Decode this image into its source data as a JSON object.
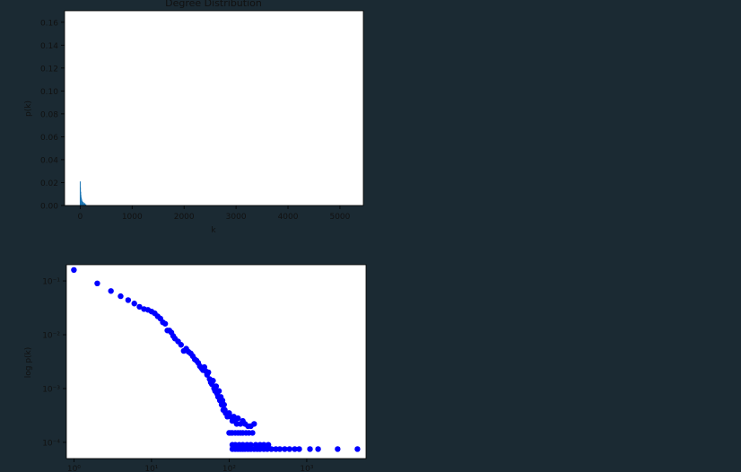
{
  "colors": {
    "page_background": "#1b2a33",
    "plot_background": "#ffffff",
    "histogram_color": "#1f77b4",
    "scatter_color": "#0000ff",
    "text_color": "#111111"
  },
  "chart_data": [
    {
      "type": "bar",
      "title": "Degree Distribution",
      "xlabel": "k",
      "ylabel": "p(k)",
      "xlim": [
        -300,
        5450
      ],
      "ylim": [
        0,
        0.17
      ],
      "x_ticks": [
        0,
        1000,
        2000,
        3000,
        4000,
        5000
      ],
      "x_tick_labels": [
        "0",
        "1000",
        "2000",
        "3000",
        "4000",
        "5000"
      ],
      "y_ticks": [
        0,
        0.02,
        0.04,
        0.06,
        0.08,
        0.1,
        0.12,
        0.14,
        0.16
      ],
      "y_tick_labels": [
        "0.00",
        "0.02",
        "0.04",
        "0.06",
        "0.08",
        "0.10",
        "0.12",
        "0.14",
        "0.16"
      ],
      "grid": false,
      "x": [
        1,
        5,
        10,
        15,
        20,
        25,
        30,
        40,
        50,
        60,
        70,
        80,
        90,
        100,
        110
      ],
      "values": [
        0.021,
        0.016,
        0.012,
        0.009,
        0.007,
        0.006,
        0.005,
        0.004,
        0.003,
        0.003,
        0.002,
        0.002,
        0.002,
        0.001,
        0.001
      ]
    },
    {
      "type": "scatter",
      "xlabel": "",
      "ylabel": "log p(k)",
      "x_scale": "log",
      "y_scale": "log",
      "xlim": [
        0.8,
        5800
      ],
      "ylim": [
        5e-05,
        0.2
      ],
      "x_ticks": [
        1,
        10,
        100,
        1000
      ],
      "x_tick_labels": [
        "10⁰",
        "10¹",
        "10²",
        "10³"
      ],
      "y_ticks": [
        0.0001,
        0.001,
        0.01,
        0.1
      ],
      "y_tick_labels": [
        "10⁻⁴",
        "10⁻³",
        "10⁻²",
        "10⁻¹"
      ],
      "grid": false,
      "x": [
        1,
        2,
        3,
        4,
        5,
        6,
        7,
        8,
        9,
        10,
        11,
        12,
        13,
        14,
        15,
        16,
        17,
        18,
        19,
        20,
        22,
        24,
        26,
        28,
        30,
        32,
        34,
        36,
        38,
        40,
        42,
        44,
        46,
        48,
        50,
        52,
        54,
        56,
        58,
        60,
        62,
        64,
        66,
        68,
        70,
        72,
        74,
        76,
        78,
        80,
        82,
        84,
        86,
        88,
        90,
        95,
        100,
        105,
        110,
        115,
        120,
        125,
        130,
        140,
        150,
        160,
        175,
        190,
        210,
        100,
        105,
        110,
        120,
        130,
        140,
        150,
        165,
        180,
        200,
        110,
        120,
        135,
        150,
        170,
        190,
        220,
        250,
        280,
        320,
        110,
        120,
        130,
        140,
        150,
        160,
        175,
        190,
        210,
        230,
        250,
        280,
        310,
        350,
        400,
        450,
        520,
        600,
        700,
        800,
        1100,
        1400,
        2500,
        4500
      ],
      "y": [
        0.16,
        0.09,
        0.065,
        0.052,
        0.044,
        0.038,
        0.033,
        0.03,
        0.029,
        0.027,
        0.025,
        0.022,
        0.02,
        0.017,
        0.016,
        0.012,
        0.012,
        0.011,
        0.0095,
        0.0085,
        0.0075,
        0.0065,
        0.005,
        0.0055,
        0.0048,
        0.0045,
        0.004,
        0.0035,
        0.0033,
        0.003,
        0.0026,
        0.0024,
        0.0022,
        0.0025,
        0.0021,
        0.0018,
        0.002,
        0.0015,
        0.0013,
        0.0012,
        0.0014,
        0.001,
        0.0009,
        0.0011,
        0.0008,
        0.0007,
        0.0009,
        0.0006,
        0.0007,
        0.0005,
        0.0006,
        0.0004,
        0.0005,
        0.0004,
        0.00035,
        0.0003,
        0.00035,
        0.0003,
        0.00025,
        0.0003,
        0.00025,
        0.00022,
        0.00028,
        0.00022,
        0.00025,
        0.00022,
        0.0002,
        0.0002,
        0.00022,
        0.00015,
        0.00015,
        0.00015,
        0.00015,
        0.00015,
        0.00015,
        0.00015,
        0.00015,
        0.00015,
        0.00015,
        9e-05,
        9e-05,
        9e-05,
        9e-05,
        9e-05,
        9e-05,
        9e-05,
        9e-05,
        9e-05,
        9e-05,
        7.5e-05,
        7.5e-05,
        7.5e-05,
        7.5e-05,
        7.5e-05,
        7.5e-05,
        7.5e-05,
        7.5e-05,
        7.5e-05,
        7.5e-05,
        7.5e-05,
        7.5e-05,
        7.5e-05,
        7.5e-05,
        7.5e-05,
        7.5e-05,
        7.5e-05,
        7.5e-05,
        7.5e-05,
        7.5e-05,
        7.5e-05,
        7.5e-05,
        7.5e-05,
        7.5e-05
      ]
    }
  ]
}
